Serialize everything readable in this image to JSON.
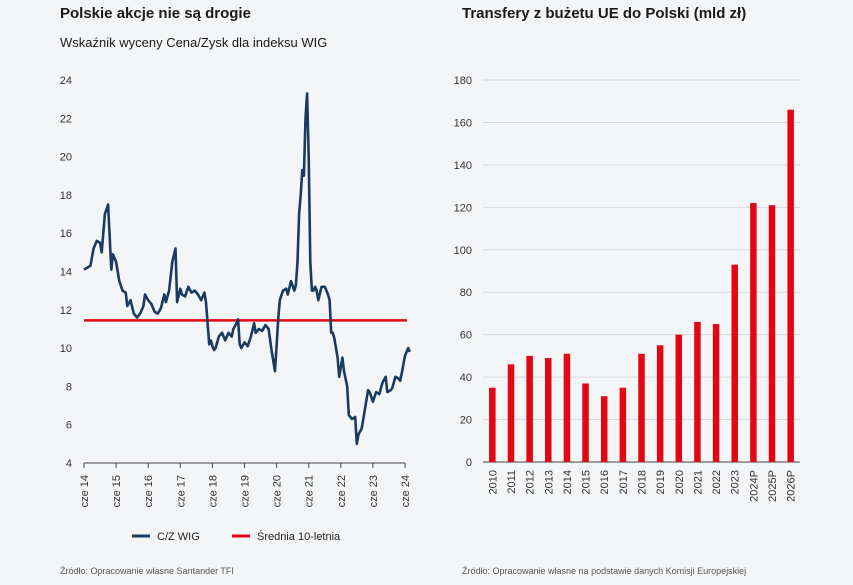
{
  "left": {
    "title": "Polskie akcje nie są drogie",
    "subtitle": "Wskaźnik wyceny Cena/Zysk dla indeksu WIG",
    "source": "Źródło: Opracowanie własne Santander TFI"
  },
  "right": {
    "title": "Transfery z bużetu UE do Polski (mld zł)",
    "source": "Źródło: Opracowanie własne na podstawie danych Komisji Europejskiej"
  },
  "colors": {
    "navy": "#1b3a61",
    "red": "#e30613",
    "grid": "#d6d9de"
  },
  "chart_data": [
    {
      "type": "line",
      "title": "Polskie akcje nie są drogie",
      "subtitle": "Wskaźnik wyceny Cena/Zysk dla indeksu WIG",
      "ylim": [
        4,
        24
      ],
      "yticks": [
        4,
        6,
        8,
        10,
        12,
        14,
        16,
        18,
        20,
        22,
        24
      ],
      "xlim": [
        2014.0,
        2024.0
      ],
      "xtick_labels": [
        "cze 14",
        "cze 15",
        "cze 16",
        "cze 17",
        "cze 18",
        "cze 19",
        "cze 20",
        "cze 21",
        "cze 22",
        "cze 23",
        "cze 24"
      ],
      "legend_position": "bottom",
      "series": [
        {
          "name": "C/Z WIG",
          "color": "#1b3a61",
          "points": [
            [
              2014.0,
              14.1
            ],
            [
              2014.2,
              14.3
            ],
            [
              2014.3,
              15.2
            ],
            [
              2014.4,
              15.6
            ],
            [
              2014.5,
              15.5
            ],
            [
              2014.55,
              15.0
            ],
            [
              2014.65,
              17.0
            ],
            [
              2014.75,
              17.5
            ],
            [
              2014.85,
              14.1
            ],
            [
              2014.9,
              14.9
            ],
            [
              2015.0,
              14.5
            ],
            [
              2015.1,
              13.5
            ],
            [
              2015.2,
              13.0
            ],
            [
              2015.3,
              12.9
            ],
            [
              2015.35,
              12.2
            ],
            [
              2015.45,
              12.5
            ],
            [
              2015.55,
              11.8
            ],
            [
              2015.65,
              11.6
            ],
            [
              2015.75,
              11.8
            ],
            [
              2015.85,
              12.2
            ],
            [
              2015.9,
              12.8
            ],
            [
              2016.0,
              12.5
            ],
            [
              2016.1,
              12.3
            ],
            [
              2016.2,
              11.9
            ],
            [
              2016.3,
              11.8
            ],
            [
              2016.4,
              12.1
            ],
            [
              2016.5,
              12.8
            ],
            [
              2016.55,
              12.4
            ],
            [
              2016.65,
              13.0
            ],
            [
              2016.75,
              14.5
            ],
            [
              2016.85,
              15.2
            ],
            [
              2016.9,
              12.4
            ],
            [
              2017.0,
              13.1
            ],
            [
              2017.05,
              12.8
            ],
            [
              2017.15,
              12.7
            ],
            [
              2017.25,
              13.2
            ],
            [
              2017.35,
              12.9
            ],
            [
              2017.45,
              13.0
            ],
            [
              2017.55,
              12.8
            ],
            [
              2017.65,
              12.5
            ],
            [
              2017.75,
              12.9
            ],
            [
              2017.8,
              12.4
            ],
            [
              2017.9,
              10.2
            ],
            [
              2017.95,
              10.4
            ],
            [
              2018.0,
              10.1
            ],
            [
              2018.05,
              9.9
            ],
            [
              2018.1,
              10.0
            ],
            [
              2018.2,
              10.6
            ],
            [
              2018.3,
              10.8
            ],
            [
              2018.4,
              10.4
            ],
            [
              2018.5,
              10.8
            ],
            [
              2018.6,
              10.6
            ],
            [
              2018.65,
              11.0
            ],
            [
              2018.75,
              11.3
            ],
            [
              2018.8,
              11.5
            ],
            [
              2018.85,
              10.2
            ],
            [
              2018.9,
              10.0
            ],
            [
              2019.0,
              10.3
            ],
            [
              2019.1,
              10.1
            ],
            [
              2019.2,
              10.6
            ],
            [
              2019.3,
              11.3
            ],
            [
              2019.35,
              10.8
            ],
            [
              2019.45,
              11.0
            ],
            [
              2019.55,
              10.9
            ],
            [
              2019.65,
              11.2
            ],
            [
              2019.75,
              11.0
            ],
            [
              2019.85,
              9.8
            ],
            [
              2019.95,
              8.8
            ],
            [
              2020.05,
              11.5
            ],
            [
              2020.1,
              12.5
            ],
            [
              2020.2,
              13.0
            ],
            [
              2020.3,
              13.1
            ],
            [
              2020.35,
              12.8
            ],
            [
              2020.45,
              13.5
            ],
            [
              2020.55,
              13.0
            ],
            [
              2020.6,
              13.3
            ],
            [
              2020.65,
              14.5
            ],
            [
              2020.7,
              17.0
            ],
            [
              2020.75,
              18.0
            ],
            [
              2020.8,
              19.3
            ],
            [
              2020.85,
              19.0
            ],
            [
              2020.9,
              22.0
            ],
            [
              2020.95,
              23.3
            ],
            [
              2021.0,
              20.0
            ],
            [
              2021.05,
              14.5
            ],
            [
              2021.1,
              13.0
            ],
            [
              2021.15,
              13.0
            ],
            [
              2021.2,
              13.2
            ],
            [
              2021.25,
              13.0
            ],
            [
              2021.3,
              12.5
            ],
            [
              2021.4,
              13.2
            ],
            [
              2021.5,
              13.2
            ],
            [
              2021.55,
              13.0
            ],
            [
              2021.6,
              12.8
            ],
            [
              2021.65,
              12.5
            ],
            [
              2021.7,
              10.8
            ],
            [
              2021.75,
              10.8
            ],
            [
              2021.8,
              10.5
            ],
            [
              2021.85,
              10.0
            ],
            [
              2021.9,
              9.5
            ],
            [
              2021.95,
              8.5
            ],
            [
              2022.0,
              9.0
            ],
            [
              2022.05,
              9.5
            ],
            [
              2022.1,
              8.8
            ],
            [
              2022.2,
              8.0
            ],
            [
              2022.25,
              6.5
            ],
            [
              2022.35,
              6.3
            ],
            [
              2022.45,
              6.4
            ],
            [
              2022.5,
              5.0
            ],
            [
              2022.55,
              5.5
            ],
            [
              2022.65,
              5.8
            ],
            [
              2022.75,
              6.8
            ],
            [
              2022.85,
              7.8
            ],
            [
              2022.9,
              7.7
            ],
            [
              2023.0,
              7.2
            ],
            [
              2023.1,
              7.7
            ],
            [
              2023.2,
              7.6
            ],
            [
              2023.3,
              8.2
            ],
            [
              2023.4,
              8.5
            ],
            [
              2023.45,
              7.7
            ],
            [
              2023.55,
              7.8
            ],
            [
              2023.6,
              7.9
            ],
            [
              2023.7,
              8.5
            ],
            [
              2023.8,
              8.4
            ],
            [
              2023.85,
              8.3
            ],
            [
              2023.9,
              8.7
            ],
            [
              2024.0,
              9.6
            ],
            [
              2024.1,
              10.0
            ],
            [
              2024.15,
              9.8
            ]
          ]
        },
        {
          "name": "Średnia 10-letnia",
          "color": "#e30613",
          "value": 11.45
        }
      ]
    },
    {
      "type": "bar",
      "title": "Transfery z bużetu UE do Polski (mld zł)",
      "categories": [
        "2010",
        "2011",
        "2012",
        "2013",
        "2014",
        "2015",
        "2016",
        "2017",
        "2018",
        "2019",
        "2020",
        "2021",
        "2022",
        "2023",
        "2024P",
        "2025P",
        "2026P"
      ],
      "values": [
        35,
        46,
        50,
        49,
        51,
        37,
        31,
        35,
        51,
        55,
        60,
        66,
        65,
        93,
        122,
        121,
        166
      ],
      "ylim": [
        0,
        180
      ],
      "yticks": [
        0,
        20,
        40,
        60,
        80,
        100,
        120,
        140,
        160,
        180
      ],
      "color": "#e30613"
    }
  ]
}
